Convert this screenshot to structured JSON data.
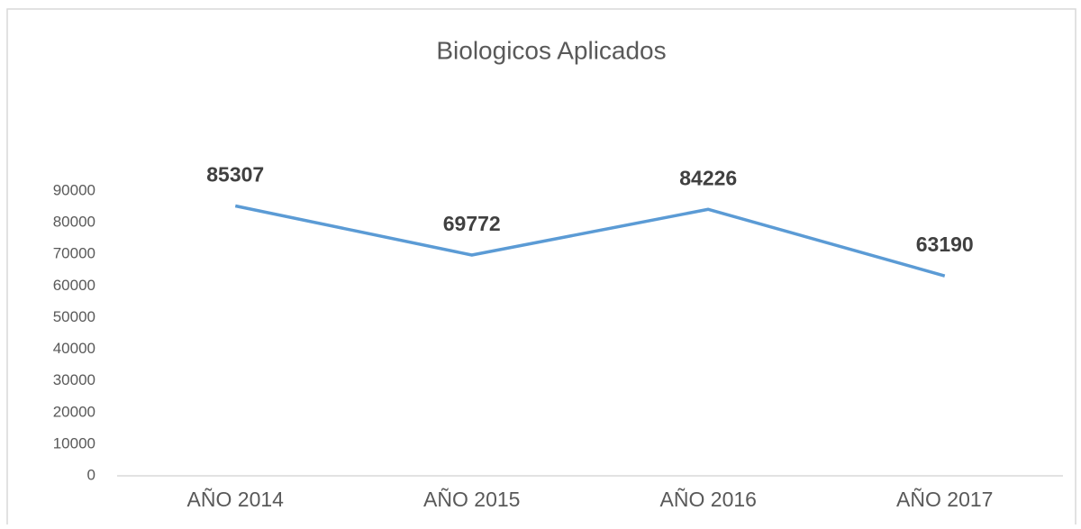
{
  "chart_data": {
    "type": "line",
    "title": "Biologicos Aplicados",
    "categories": [
      "AÑO 2014",
      "AÑO 2015",
      "AÑO 2016",
      "AÑO 2017"
    ],
    "series": [
      {
        "name": "Biologicos Aplicados",
        "color": "#5b9bd5",
        "values": [
          85307,
          69772,
          84226,
          63190
        ]
      }
    ],
    "ylim": [
      0,
      90000
    ],
    "yticks": [
      0,
      10000,
      20000,
      30000,
      40000,
      50000,
      60000,
      70000,
      80000,
      90000
    ],
    "grid": false,
    "data_labels": true,
    "legend": false
  }
}
